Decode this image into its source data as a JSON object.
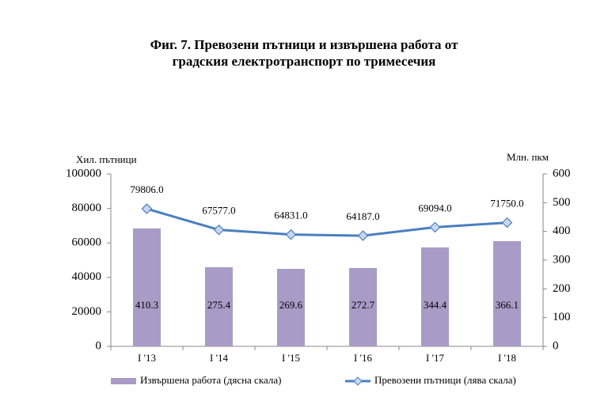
{
  "chart_data": {
    "type": "bar-line",
    "title": "Фиг. 7. Превозени пътници и извършена работа от градския електротранспорт по тримесечия",
    "y_label": "Хил. пътници",
    "y2_label": "Млн. пкм",
    "categories": [
      "I '13",
      "I '14",
      "I '15",
      "I '16",
      "I '17",
      "I '18"
    ],
    "series": [
      {
        "name": "Извършена работа (дясна скала)",
        "type": "bar",
        "axis": "y2",
        "color": "#a99bc6",
        "values": [
          410.3,
          275.4,
          269.6,
          272.7,
          344.4,
          366.1
        ]
      },
      {
        "name": "Превозени пътници (лява скала)",
        "type": "line",
        "axis": "y",
        "color": "#4a7fc1",
        "values": [
          79806,
          67577,
          64831,
          64187,
          69094,
          71750
        ],
        "value_labels": [
          "79806.0",
          "67577.0",
          "64831.0",
          "64187.0",
          "69094.0",
          "71750.0"
        ]
      }
    ],
    "ylim": [
      0,
      100000
    ],
    "yticks": [
      0,
      20000,
      40000,
      60000,
      80000,
      100000
    ],
    "y2lim": [
      0,
      600
    ],
    "y2ticks": [
      0,
      100,
      200,
      300,
      400,
      500,
      600
    ],
    "grid": false
  }
}
